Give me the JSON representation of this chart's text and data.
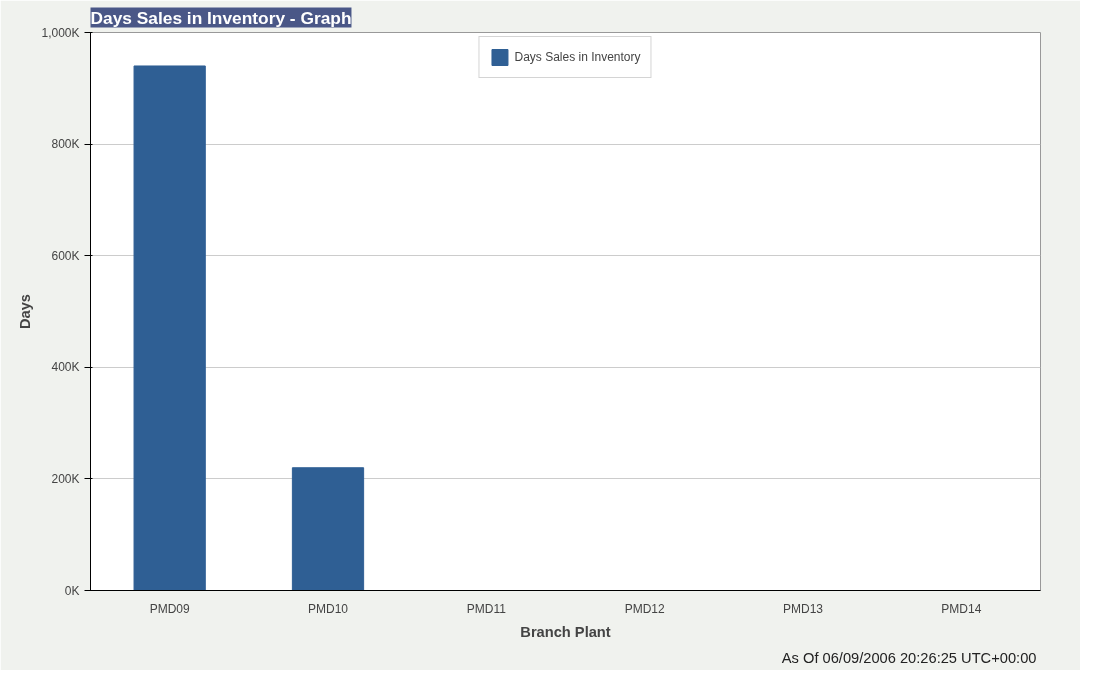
{
  "chart_data": {
    "type": "bar",
    "title": "Days Sales in Inventory - Graph",
    "xlabel": "Branch Plant",
    "ylabel": "Days",
    "categories": [
      "PMD09",
      "PMD10",
      "PMD11",
      "PMD12",
      "PMD13",
      "PMD14"
    ],
    "series": [
      {
        "name": "Days Sales in Inventory",
        "color": "#2f5f94",
        "values": [
          940000,
          220000,
          0,
          0,
          0,
          0
        ]
      }
    ],
    "ylim": [
      0,
      1000000
    ],
    "yticks": [
      {
        "value": 0,
        "label": "0K"
      },
      {
        "value": 200000,
        "label": "200K"
      },
      {
        "value": 400000,
        "label": "400K"
      },
      {
        "value": 600000,
        "label": "600K"
      },
      {
        "value": 800000,
        "label": "800K"
      },
      {
        "value": 1000000,
        "label": "1,000K"
      }
    ],
    "grid": "y",
    "legend": "top",
    "annotations": [
      "As Of  06/09/2006 20:26:25 UTC+00:00"
    ]
  }
}
